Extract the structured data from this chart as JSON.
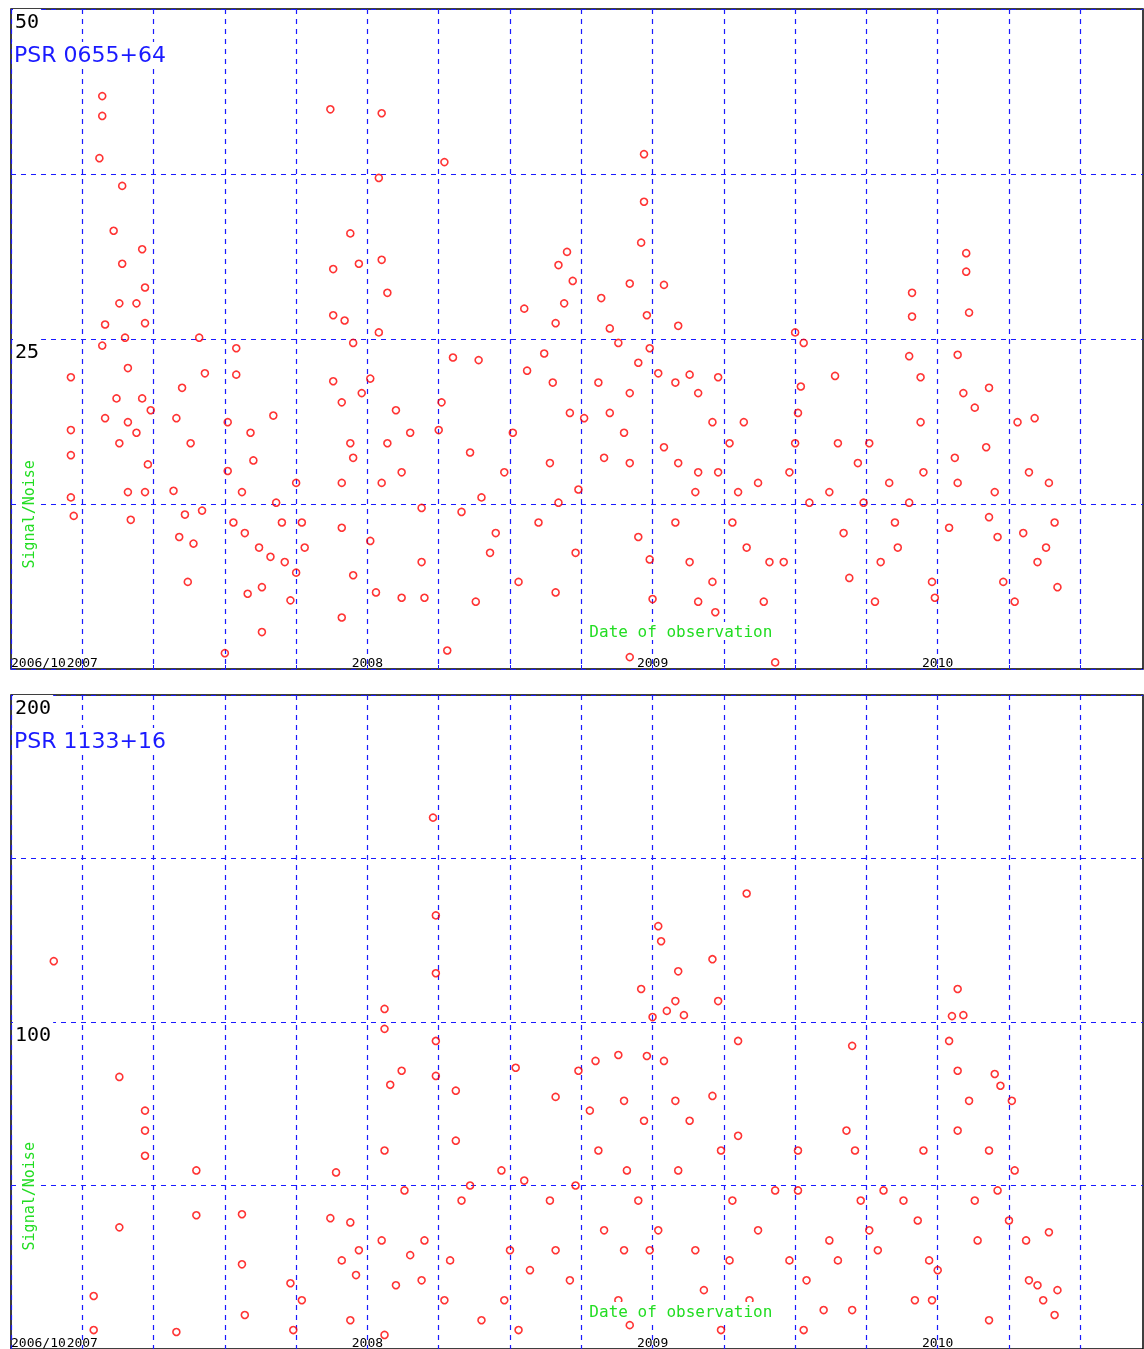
{
  "chart_data": [
    {
      "type": "scatter",
      "annotations": [
        "PSR 0655+64"
      ],
      "xlabel": "Date of observation",
      "ylabel": "Signal/Noise",
      "marker": "circle",
      "grid": true,
      "xlim": [
        2006.75,
        2010.72
      ],
      "ylim": [
        0,
        50
      ],
      "xticks": [
        {
          "value": 2006.75,
          "label": "2006/10"
        },
        2007,
        {
          "value": 2007.25,
          "label": null
        },
        {
          "value": 2007.5,
          "label": null
        },
        {
          "value": 2007.75,
          "label": null
        },
        2008,
        {
          "value": 2008.25,
          "label": null
        },
        {
          "value": 2008.5,
          "label": null
        },
        {
          "value": 2008.75,
          "label": null
        },
        2009,
        {
          "value": 2009.25,
          "label": null
        },
        {
          "value": 2009.5,
          "label": null
        },
        {
          "value": 2009.75,
          "label": null
        },
        2010,
        {
          "value": 2010.25,
          "label": null
        },
        {
          "value": 2010.5,
          "label": null
        }
      ],
      "yticks": [
        {
          "value": 0,
          "label": null
        },
        {
          "value": 12.5,
          "label": null
        },
        25,
        {
          "value": 37.5,
          "label": null
        },
        50
      ],
      "series": [
        {
          "color": "#ff0000",
          "x": [
            2006.96,
            2006.96,
            2006.96,
            2006.96,
            2006.97,
            2007.07,
            2007.07,
            2007.06,
            2007.14,
            2007.11,
            2007.14,
            2007.13,
            2007.08,
            2007.07,
            2007.15,
            2007.16,
            2007.19,
            2007.21,
            2007.22,
            2007.22,
            2007.12,
            2007.08,
            2007.16,
            2007.21,
            2007.13,
            2007.19,
            2007.24,
            2007.16,
            2007.17,
            2007.23,
            2007.22,
            2007.41,
            2007.43,
            2007.35,
            2007.33,
            2007.38,
            2007.32,
            2007.36,
            2007.37,
            2007.42,
            2007.34,
            2007.39,
            2007.5,
            2007.54,
            2007.54,
            2007.51,
            2007.51,
            2007.56,
            2007.59,
            2007.67,
            2007.6,
            2007.53,
            2007.57,
            2007.63,
            2007.58,
            2007.63,
            2007.68,
            2007.7,
            2007.71,
            2007.75,
            2007.77,
            2007.73,
            2007.78,
            2007.62,
            2007.66,
            2007.75,
            2007.87,
            2007.94,
            2007.88,
            2007.97,
            2008.05,
            2008.04,
            2008.05,
            2008.07,
            2008.04,
            2007.88,
            2007.92,
            2007.95,
            2007.88,
            2008.01,
            2007.98,
            2007.91,
            2007.94,
            2007.91,
            2007.95,
            2007.91,
            2007.91,
            2007.95,
            2008.01,
            2008.03,
            2008.05,
            2008.1,
            2008.07,
            2008.27,
            2008.28,
            2008.12,
            2008.15,
            2008.19,
            2008.19,
            2008.12,
            2008.2,
            2008.26,
            2008.25,
            2008.3,
            2008.33,
            2008.36,
            2008.39,
            2008.4,
            2008.38,
            2008.43,
            2008.45,
            2008.48,
            2008.51,
            2008.53,
            2008.55,
            2008.7,
            2008.67,
            2008.72,
            2008.69,
            2008.66,
            2008.62,
            2008.56,
            2008.65,
            2008.71,
            2008.64,
            2008.67,
            2008.6,
            2008.73,
            2008.66,
            2008.74,
            2008.76,
            2008.82,
            2008.85,
            2008.92,
            2008.88,
            2008.81,
            2008.85,
            2008.9,
            2008.95,
            2008.92,
            2008.83,
            2008.92,
            2008.97,
            2008.97,
            2008.96,
            2008.98,
            2008.99,
            2008.95,
            2008.92,
            2009.0,
            2008.99,
            2009.04,
            2009.09,
            2009.02,
            2009.08,
            2009.13,
            2009.16,
            2009.04,
            2009.09,
            2009.16,
            2009.08,
            2009.15,
            2009.13,
            2009.16,
            2009.23,
            2009.21,
            2009.27,
            2009.23,
            2009.3,
            2009.28,
            2009.33,
            2009.21,
            2009.22,
            2009.32,
            2009.37,
            2009.39,
            2009.43,
            2009.41,
            2009.5,
            2009.53,
            2009.52,
            2009.51,
            2009.5,
            2009.48,
            2009.46,
            2009.55,
            2009.62,
            2009.64,
            2009.65,
            2009.67,
            2009.69,
            2009.72,
            2009.74,
            2009.76,
            2009.78,
            2009.8,
            2009.83,
            2009.85,
            2009.86,
            2009.9,
            2009.9,
            2009.91,
            2009.91,
            2009.94,
            2009.94,
            2009.95,
            2009.98,
            2009.99,
            2010.1,
            2010.1,
            2010.11,
            2010.07,
            2010.09,
            2010.13,
            2010.06,
            2010.07,
            2010.04,
            2010.18,
            2010.17,
            2010.2,
            2010.18,
            2010.21,
            2010.23,
            2010.27,
            2010.28,
            2010.34,
            2010.32,
            2010.3,
            2010.35,
            2010.39,
            2010.41,
            2010.42,
            2010.38
          ],
          "values": [
            22.1,
            18.1,
            16.2,
            13.0,
            11.6,
            43.4,
            41.9,
            38.7,
            36.6,
            33.2,
            30.7,
            27.7,
            26.1,
            24.5,
            25.1,
            22.8,
            27.7,
            31.8,
            28.9,
            26.2,
            20.5,
            19.0,
            18.7,
            20.5,
            17.1,
            17.9,
            19.6,
            13.4,
            11.3,
            15.5,
            13.4,
            25.1,
            22.4,
            21.3,
            19.0,
            17.1,
            13.5,
            11.7,
            6.6,
            12.0,
            10.0,
            9.5,
            1.2,
            24.3,
            22.3,
            18.7,
            15.0,
            13.4,
            17.9,
            19.2,
            15.8,
            11.1,
            10.3,
            2.8,
            5.7,
            6.2,
            12.6,
            11.1,
            8.1,
            14.1,
            11.1,
            5.2,
            9.2,
            9.2,
            8.5,
            7.3,
            42.4,
            33.0,
            30.3,
            30.7,
            42.1,
            37.2,
            31.0,
            28.5,
            25.5,
            26.8,
            26.4,
            24.7,
            21.8,
            22.0,
            20.9,
            20.2,
            17.1,
            14.1,
            16.0,
            10.7,
            3.9,
            7.1,
            9.7,
            5.8,
            14.1,
            19.6,
            17.1,
            38.4,
            1.4,
            14.9,
            17.9,
            12.2,
            8.1,
            5.4,
            5.4,
            20.2,
            18.1,
            23.6,
            11.9,
            16.4,
            23.4,
            13.0,
            5.1,
            8.8,
            10.3,
            14.9,
            17.9,
            6.6,
            27.3,
            31.6,
            30.6,
            29.4,
            27.7,
            26.2,
            23.9,
            22.6,
            21.7,
            19.4,
            15.6,
            12.6,
            11.1,
            8.8,
            5.8,
            13.6,
            19.0,
            28.1,
            25.8,
            29.2,
            24.7,
            21.7,
            19.4,
            17.9,
            23.2,
            20.9,
            16.0,
            15.6,
            39.0,
            35.4,
            32.3,
            26.8,
            24.3,
            10.0,
            0.9,
            5.3,
            8.3,
            29.1,
            26.0,
            22.4,
            21.7,
            22.3,
            20.9,
            16.8,
            15.6,
            14.9,
            11.1,
            13.4,
            8.1,
            5.1,
            22.1,
            18.7,
            17.1,
            14.9,
            13.4,
            11.1,
            9.2,
            6.6,
            4.3,
            18.7,
            14.1,
            5.1,
            0.5,
            8.1,
            25.5,
            24.7,
            21.4,
            19.4,
            17.1,
            14.9,
            8.1,
            12.6,
            13.4,
            22.2,
            17.1,
            10.3,
            6.9,
            15.6,
            12.6,
            17.1,
            5.1,
            8.1,
            14.1,
            11.1,
            9.2,
            12.6,
            23.7,
            26.7,
            28.5,
            22.1,
            18.7,
            14.9,
            6.6,
            5.4,
            31.5,
            30.1,
            27.0,
            23.8,
            20.9,
            19.8,
            16.0,
            14.1,
            10.7,
            21.3,
            16.8,
            13.4,
            11.5,
            10.0,
            6.6,
            5.1,
            18.7,
            19.0,
            14.9,
            10.3,
            8.1,
            14.1,
            11.1,
            6.2,
            9.2
          ]
        }
      ]
    },
    {
      "type": "scatter",
      "annotations": [
        "PSR 1133+16"
      ],
      "xlabel": "Date of observation",
      "ylabel": "Signal/Noise",
      "marker": "circle",
      "grid": true,
      "xlim": [
        2006.75,
        2010.72
      ],
      "ylim": [
        0,
        200
      ],
      "xticks": [
        {
          "value": 2006.75,
          "label": "2006/10"
        },
        2007,
        {
          "value": 2007.25,
          "label": null
        },
        {
          "value": 2007.5,
          "label": null
        },
        {
          "value": 2007.75,
          "label": null
        },
        2008,
        {
          "value": 2008.25,
          "label": null
        },
        {
          "value": 2008.5,
          "label": null
        },
        {
          "value": 2008.75,
          "label": null
        },
        2009,
        {
          "value": 2009.25,
          "label": null
        },
        {
          "value": 2009.5,
          "label": null
        },
        {
          "value": 2009.75,
          "label": null
        },
        2010,
        {
          "value": 2010.25,
          "label": null
        },
        {
          "value": 2010.5,
          "label": null
        }
      ],
      "yticks": [
        {
          "value": 0,
          "label": null
        },
        {
          "value": 50,
          "label": null
        },
        100,
        {
          "value": 150,
          "label": null
        },
        200
      ],
      "series": [
        {
          "color": "#ff0000",
          "x": [
            2006.9,
            2007.04,
            2007.04,
            2007.13,
            2007.13,
            2007.22,
            2007.22,
            2007.22,
            2007.33,
            2007.4,
            2007.4,
            2007.56,
            2007.56,
            2007.57,
            2007.73,
            2007.74,
            2007.77,
            2007.89,
            2007.87,
            2007.91,
            2007.94,
            2007.96,
            2007.94,
            2007.97,
            2008.06,
            2008.06,
            2008.08,
            2008.06,
            2008.05,
            2008.06,
            2008.12,
            2008.13,
            2008.15,
            2008.19,
            2008.2,
            2008.1,
            2008.23,
            2008.24,
            2008.24,
            2008.24,
            2008.24,
            2008.31,
            2008.31,
            2008.33,
            2008.29,
            2008.27,
            2008.36,
            2008.4,
            2008.47,
            2008.48,
            2008.5,
            2008.52,
            2008.53,
            2008.55,
            2008.57,
            2008.66,
            2008.64,
            2008.66,
            2008.74,
            2008.73,
            2008.71,
            2008.78,
            2008.8,
            2008.81,
            2008.83,
            2008.88,
            2008.9,
            2008.91,
            2008.9,
            2008.88,
            2008.92,
            2008.96,
            2008.98,
            2008.97,
            2008.95,
            2008.99,
            2009.0,
            2009.02,
            2009.03,
            2009.05,
            2009.09,
            2009.08,
            2009.11,
            2009.04,
            2009.08,
            2009.13,
            2009.09,
            2009.02,
            2009.15,
            2009.18,
            2009.21,
            2009.23,
            2009.21,
            2009.24,
            2009.33,
            2009.3,
            2009.3,
            2009.28,
            2009.27,
            2009.24,
            2009.34,
            2009.37,
            2009.43,
            2009.48,
            2009.51,
            2009.51,
            2009.53,
            2009.54,
            2009.6,
            2009.62,
            2009.65,
            2009.68,
            2009.7,
            2009.71,
            2009.7,
            2009.73,
            2009.76,
            2009.79,
            2009.81,
            2009.88,
            2009.92,
            2009.93,
            2009.95,
            2009.97,
            2009.98,
            2010.0,
            2010.07,
            2010.05,
            2010.09,
            2010.04,
            2010.07,
            2010.11,
            2010.07,
            2010.13,
            2010.14,
            2010.2,
            2010.22,
            2010.26,
            2010.18,
            2010.21,
            2010.25,
            2010.18,
            2010.27,
            2010.31,
            2010.32,
            2010.35,
            2010.37,
            2010.39,
            2010.41,
            2010.42
          ],
          "values": [
            118.6,
            16.2,
            5.8,
            83.2,
            37.2,
            72.9,
            66.8,
            59.1,
            5.2,
            54.6,
            40.9,
            41.2,
            25.9,
            10.4,
            20.1,
            5.8,
            14.9,
            54.0,
            40.0,
            27.1,
            38.7,
            22.6,
            8.8,
            30.2,
            104.0,
            97.9,
            80.8,
            60.7,
            33.2,
            4.3,
            85.1,
            48.5,
            28.7,
            21.0,
            33.2,
            19.5,
            162.5,
            132.6,
            114.9,
            94.2,
            83.5,
            79.0,
            63.7,
            45.4,
            27.1,
            14.9,
            50.0,
            8.8,
            54.6,
            14.9,
            30.2,
            86.0,
            5.8,
            51.5,
            24.1,
            77.1,
            45.4,
            30.2,
            85.1,
            50.0,
            21.0,
            72.9,
            88.1,
            60.7,
            36.3,
            89.9,
            75.9,
            54.6,
            30.2,
            14.9,
            7.3,
            110.1,
            89.6,
            69.8,
            45.4,
            30.2,
            101.5,
            129.3,
            124.7,
            103.4,
            115.5,
            106.4,
            102.1,
            88.1,
            75.9,
            69.8,
            54.6,
            36.3,
            30.2,
            18.0,
            119.2,
            106.4,
            77.4,
            60.7,
            139.3,
            94.2,
            65.2,
            45.4,
            27.1,
            5.8,
            14.9,
            36.3,
            48.5,
            27.1,
            60.7,
            48.5,
            5.8,
            21.0,
            11.9,
            33.2,
            27.1,
            66.8,
            92.7,
            60.7,
            11.9,
            45.4,
            36.3,
            30.2,
            48.5,
            45.4,
            14.9,
            39.3,
            60.7,
            27.1,
            14.9,
            24.1,
            110.1,
            101.8,
            102.1,
            94.2,
            85.1,
            75.9,
            66.8,
            45.4,
            33.2,
            84.1,
            80.5,
            75.9,
            60.7,
            48.5,
            39.3,
            8.8,
            54.6,
            33.2,
            21.0,
            19.5,
            14.9,
            35.7,
            10.4,
            18.0
          ]
        }
      ]
    }
  ]
}
